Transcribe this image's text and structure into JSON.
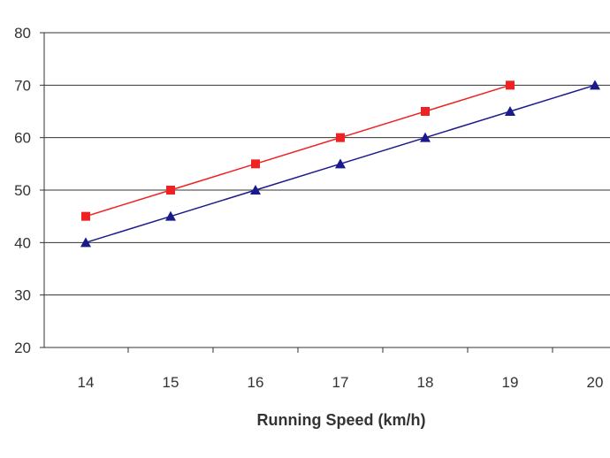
{
  "chart_data": {
    "type": "line",
    "xlabel": "Running Speed (km/h)",
    "ylabel": "",
    "x": [
      14,
      15,
      16,
      17,
      18,
      19,
      20
    ],
    "xlim": [
      14,
      20
    ],
    "ylim": [
      20,
      80
    ],
    "yticks": [
      20,
      30,
      40,
      50,
      60,
      70,
      80
    ],
    "grid": "horizontal",
    "series": [
      {
        "color": "#ee2222",
        "marker": "square",
        "x": [
          14,
          15,
          16,
          17,
          18,
          19
        ],
        "values": [
          45,
          50,
          55,
          60,
          65,
          70
        ]
      },
      {
        "color": "#1a1a8c",
        "marker": "triangle",
        "x": [
          14,
          15,
          16,
          17,
          18,
          19,
          20
        ],
        "values": [
          40,
          45,
          50,
          55,
          60,
          65,
          70
        ]
      }
    ]
  }
}
